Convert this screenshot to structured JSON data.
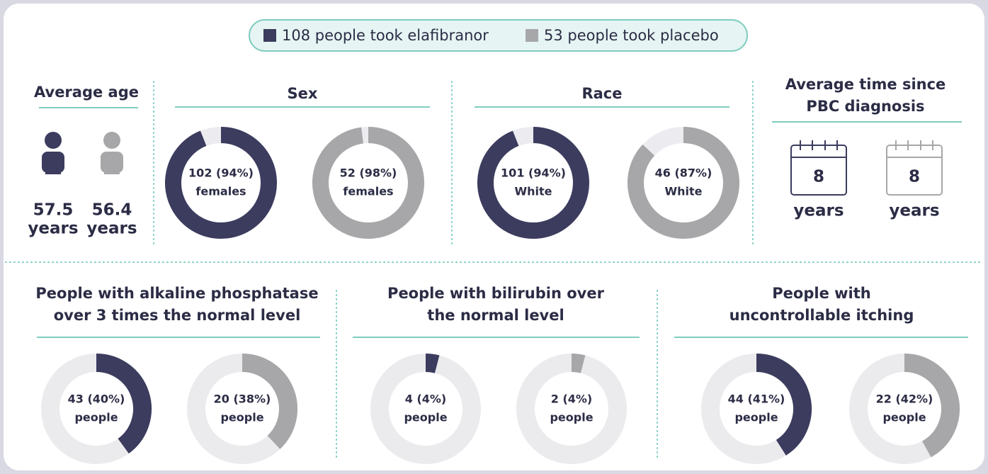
{
  "legend": {
    "elafibranor": "108 people took elafibranor",
    "placebo": "53 people took placebo",
    "colors": [
      "#3b3c5e",
      "#a7a7a9"
    ]
  },
  "age": {
    "title": "Average age",
    "items": [
      {
        "value": "57.5",
        "unit": "years"
      },
      {
        "value": "56.4",
        "unit": "years"
      }
    ]
  },
  "sex": {
    "title": "Sex",
    "donuts": [
      {
        "label": "102 (94%)",
        "sub": "females",
        "percent": 94
      },
      {
        "label": "52 (98%)",
        "sub": "females",
        "percent": 98
      }
    ]
  },
  "race": {
    "title": "Race",
    "donuts": [
      {
        "label": "101 (94%)",
        "sub": "White",
        "percent": 94
      },
      {
        "label": "46 (87%)",
        "sub": "White",
        "percent": 87
      }
    ]
  },
  "diagnosis": {
    "title": [
      "Average time since",
      "PBC diagnosis"
    ],
    "items": [
      {
        "value": "8",
        "unit": "years"
      },
      {
        "value": "8",
        "unit": "years"
      }
    ]
  },
  "alp": {
    "title": [
      "People with alkaline phosphatase",
      "over 3 times the normal level"
    ],
    "donuts": [
      {
        "label": "43 (40%)",
        "sub": "people",
        "percent": 40
      },
      {
        "label": "20 (38%)",
        "sub": "people",
        "percent": 38
      }
    ]
  },
  "bilirubin": {
    "title": [
      "People with bilirubin over",
      "the normal level"
    ],
    "donuts": [
      {
        "label": "4 (4%)",
        "sub": "people",
        "percent": 4
      },
      {
        "label": "2 (4%)",
        "sub": "people",
        "percent": 4
      }
    ]
  },
  "itching": {
    "title": [
      "People with",
      "uncontrollable itching"
    ],
    "donuts": [
      {
        "label": "44 (41%)",
        "sub": "people",
        "percent": 41
      },
      {
        "label": "22 (42%)",
        "sub": "people",
        "percent": 42
      }
    ]
  }
}
